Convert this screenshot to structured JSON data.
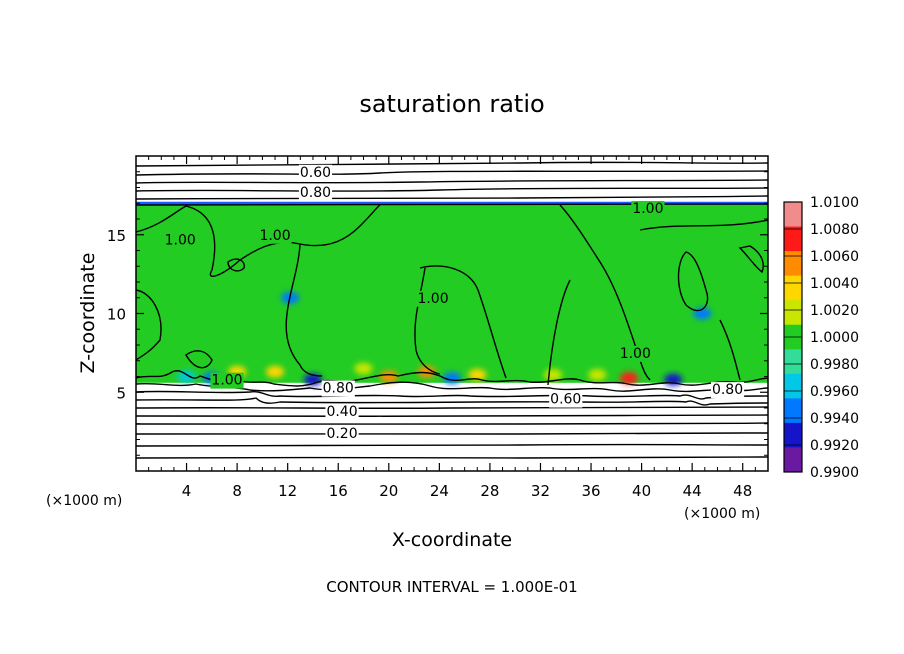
{
  "chart_data": {
    "type": "heatmap",
    "title": "saturation ratio",
    "xlabel": "X-coordinate",
    "ylabel": "Z-coordinate",
    "x_unit_label": "(×1000 m)",
    "z_unit_label": "(×1000 m)",
    "xlim": [
      0,
      50
    ],
    "ylim": [
      0,
      20
    ],
    "x_ticks": [
      4,
      8,
      12,
      16,
      20,
      24,
      28,
      32,
      36,
      40,
      44,
      48
    ],
    "x_tick_labels": [
      "4",
      "8",
      "12",
      "16",
      "20",
      "24",
      "28",
      "32",
      "36",
      "40",
      "44",
      "48"
    ],
    "y_ticks": [
      5,
      10,
      15
    ],
    "y_tick_labels": [
      "5",
      "10",
      "15"
    ],
    "colorbar": {
      "min": 0.99,
      "max": 1.01,
      "tick_values": [
        1.01,
        1.008,
        1.006,
        1.004,
        1.002,
        1.0,
        0.998,
        0.996,
        0.994,
        0.992,
        0.99
      ],
      "tick_labels": [
        "1.0100",
        "1.0080",
        "1.0060",
        "1.0040",
        "1.0020",
        "1.0000",
        "0.9980",
        "0.9960",
        "0.9940",
        "0.9920",
        "0.9900"
      ],
      "colors": [
        "#f08c8c",
        "#ff1a1a",
        "#ff8c00",
        "#ffd700",
        "#c8e600",
        "#22cc22",
        "#33dd99",
        "#00c8e6",
        "#0078ff",
        "#1414c8",
        "#6a1aa0"
      ]
    },
    "cloud_layer": {
      "z_bottom": 5.6,
      "z_top": 17.0,
      "background_value": 1.0
    },
    "contour_levels": [
      0.2,
      0.4,
      0.6,
      0.8,
      1.0
    ],
    "contour_labels": [
      {
        "text": "0.60",
        "x": 14.2,
        "z": 19.0
      },
      {
        "text": "0.80",
        "x": 14.2,
        "z": 17.7
      },
      {
        "text": "1.00",
        "x": 40.5,
        "z": 16.7
      },
      {
        "text": "1.00",
        "x": 11.0,
        "z": 15.0
      },
      {
        "text": "1.00",
        "x": 3.5,
        "z": 14.7
      },
      {
        "text": "1.00",
        "x": 23.5,
        "z": 11.0
      },
      {
        "text": "1.00",
        "x": 39.5,
        "z": 7.5
      },
      {
        "text": "1.00",
        "x": 7.2,
        "z": 5.8
      },
      {
        "text": "0.80",
        "x": 16.0,
        "z": 5.3
      },
      {
        "text": "0.80",
        "x": 46.8,
        "z": 5.2
      },
      {
        "text": "0.60",
        "x": 34.0,
        "z": 4.6
      },
      {
        "text": "0.40",
        "x": 16.3,
        "z": 3.8
      },
      {
        "text": "0.20",
        "x": 16.3,
        "z": 2.4
      }
    ],
    "hotspots": [
      {
        "x": 39.0,
        "z": 5.9,
        "value": 1.008
      },
      {
        "x": 23.0,
        "z": 6.3,
        "value": 1.007
      },
      {
        "x": 20.0,
        "z": 6.0,
        "value": 1.006
      },
      {
        "x": 27.0,
        "z": 6.1,
        "value": 1.005
      },
      {
        "x": 8.0,
        "z": 6.3,
        "value": 1.004
      },
      {
        "x": 11.0,
        "z": 6.3,
        "value": 1.004
      },
      {
        "x": 33.0,
        "z": 6.1,
        "value": 1.003
      },
      {
        "x": 36.5,
        "z": 6.1,
        "value": 1.003
      },
      {
        "x": 18.0,
        "z": 6.5,
        "value": 1.002
      },
      {
        "x": 14.0,
        "z": 5.8,
        "value": 0.992
      },
      {
        "x": 42.5,
        "z": 5.8,
        "value": 0.993
      },
      {
        "x": 6.0,
        "z": 5.9,
        "value": 0.994
      },
      {
        "x": 25.0,
        "z": 5.9,
        "value": 0.995
      },
      {
        "x": 4.0,
        "z": 6.0,
        "value": 0.996
      },
      {
        "x": 44.8,
        "z": 10.0,
        "value": 0.995
      },
      {
        "x": 12.2,
        "z": 11.0,
        "value": 0.995
      }
    ]
  },
  "footnote": "CONTOUR INTERVAL = 1.000E-01"
}
